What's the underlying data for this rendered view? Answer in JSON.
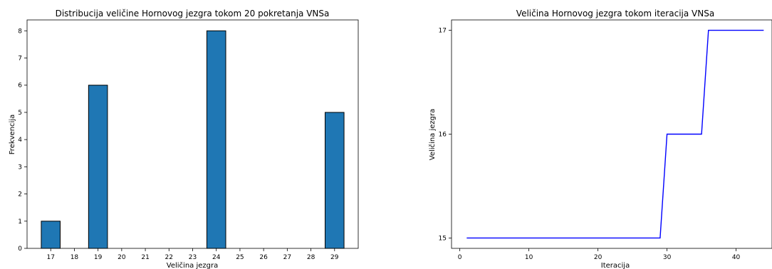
{
  "chart_data": [
    {
      "type": "bar",
      "title": "Distribucija veličine Hornovog jezgra tokom 20 pokretanja VNSa",
      "xlabel": "Veličina jezgra",
      "ylabel": "Frekvencija",
      "categories": [
        "17",
        "18",
        "19",
        "20",
        "21",
        "22",
        "23",
        "24",
        "25",
        "26",
        "27",
        "28",
        "29"
      ],
      "values": [
        1,
        0,
        6,
        0,
        0,
        0,
        0,
        8,
        0,
        0,
        0,
        0,
        5
      ],
      "xlim": [
        16,
        30
      ],
      "ylim": [
        0,
        8.4
      ],
      "yticks": [
        0,
        1,
        2,
        3,
        4,
        5,
        6,
        7,
        8
      ],
      "colors": {
        "bar": "#1f77b4",
        "edge": "#000000"
      },
      "grid": false
    },
    {
      "type": "line",
      "title": "Veličina Hornovog jezgra tokom iteracija VNSa",
      "xlabel": "Iteracija",
      "ylabel": "Veličina jezgra",
      "x": [
        1,
        2,
        3,
        4,
        5,
        6,
        7,
        8,
        9,
        10,
        11,
        12,
        13,
        14,
        15,
        16,
        17,
        18,
        19,
        20,
        21,
        22,
        23,
        24,
        25,
        26,
        27,
        28,
        29,
        30,
        31,
        32,
        33,
        34,
        35,
        36,
        37,
        38,
        39,
        40,
        41,
        42,
        43,
        44
      ],
      "y": [
        15,
        15,
        15,
        15,
        15,
        15,
        15,
        15,
        15,
        15,
        15,
        15,
        15,
        15,
        15,
        15,
        15,
        15,
        15,
        15,
        15,
        15,
        15,
        15,
        15,
        15,
        15,
        15,
        15,
        16,
        16,
        16,
        16,
        16,
        16,
        17,
        17,
        17,
        17,
        17,
        17,
        17,
        17,
        17
      ],
      "xticks": [
        0,
        10,
        20,
        30,
        40
      ],
      "yticks": [
        15,
        16,
        17
      ],
      "xlim": [
        -1.2,
        45.2
      ],
      "ylim": [
        14.9,
        17.1
      ],
      "colors": {
        "line": "#0000ff"
      },
      "grid": false
    }
  ]
}
